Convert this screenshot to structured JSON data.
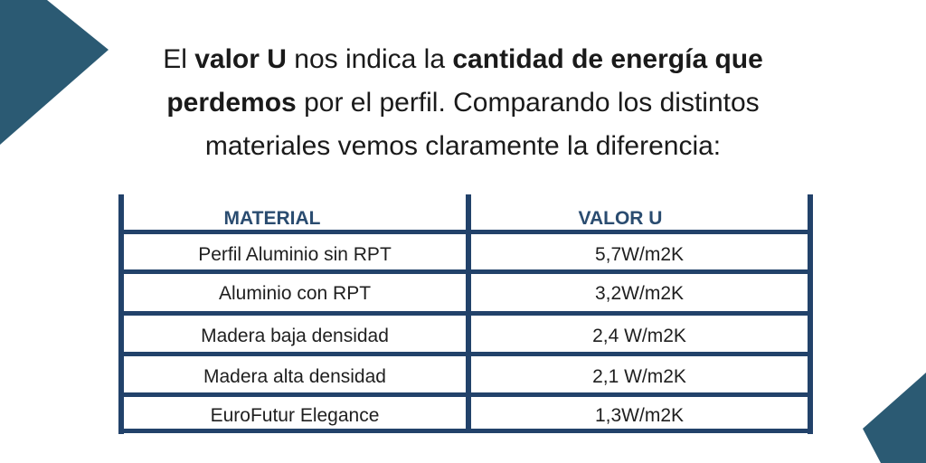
{
  "colors": {
    "accent": "#2b5a73",
    "table_border": "#22426a",
    "header_text": "#2a4c70"
  },
  "intro": {
    "t1": "El ",
    "b1": "valor U",
    "t2": " nos indica la ",
    "b2": "cantidad de energía que perdemos",
    "t3": " por el perfil. Comparando los distintos materiales vemos claramente la diferencia:"
  },
  "table": {
    "headers": {
      "material": "MATERIAL",
      "valor": "VALOR U"
    },
    "rows": [
      {
        "material": "Perfil Aluminio sin RPT",
        "valor": "5,7W/m2K"
      },
      {
        "material": "Aluminio con RPT",
        "valor": "3,2W/m2K"
      },
      {
        "material": "Madera baja densidad",
        "valor": "2,4 W/m2K"
      },
      {
        "material": "Madera alta densidad",
        "valor": "2,1 W/m2K"
      },
      {
        "material": "EuroFutur Elegance",
        "valor": "1,3W/m2K"
      }
    ]
  }
}
